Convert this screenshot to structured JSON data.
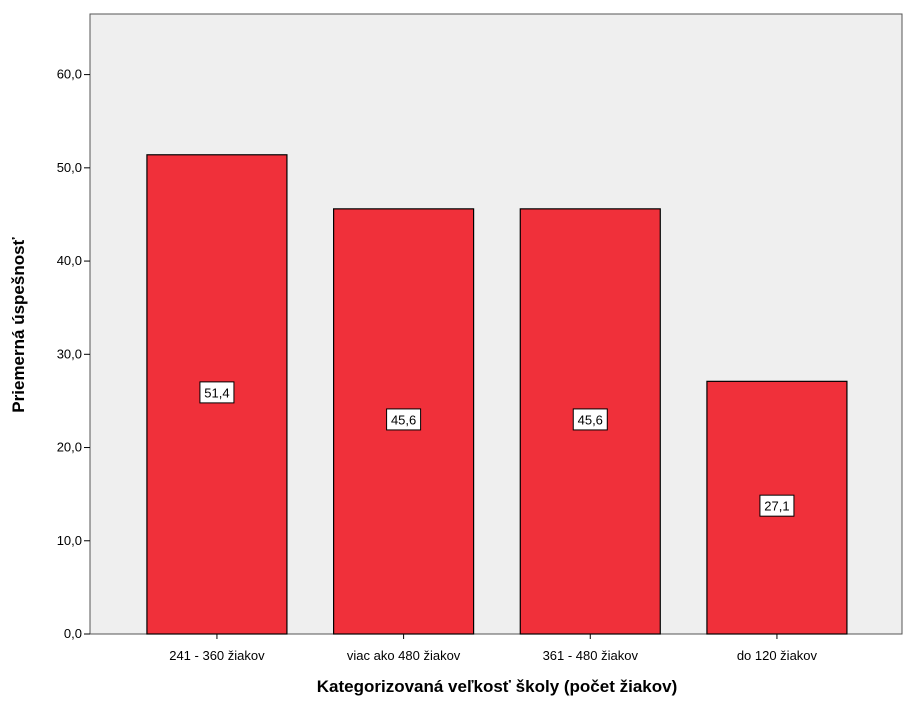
{
  "chart_data": {
    "type": "bar",
    "title": "",
    "xlabel": "Kategorizovaná veľkosť školy (počet žiakov)",
    "ylabel": "Priemerná úspešnosť",
    "categories": [
      "241 - 360 žiakov",
      "viac ako 480 žiakov",
      "361 - 480 žiakov",
      "do 120 žiakov"
    ],
    "values": [
      51.4,
      45.6,
      45.6,
      27.1
    ],
    "data_labels": [
      "51,4",
      "45,6",
      "45,6",
      "27,1"
    ],
    "ylim": [
      0,
      66.5
    ],
    "yticks": [
      0,
      10,
      20,
      30,
      40,
      50,
      60
    ],
    "ytick_labels": [
      "0,0",
      "10,0",
      "20,0",
      "30,0",
      "40,0",
      "50,0",
      "60,0"
    ],
    "grid": false,
    "legend": "none",
    "colors": {
      "bar": "#f0303a",
      "bar_edge": "#000000",
      "plot_bg": "#efefef",
      "page_bg": "#ffffff"
    }
  }
}
